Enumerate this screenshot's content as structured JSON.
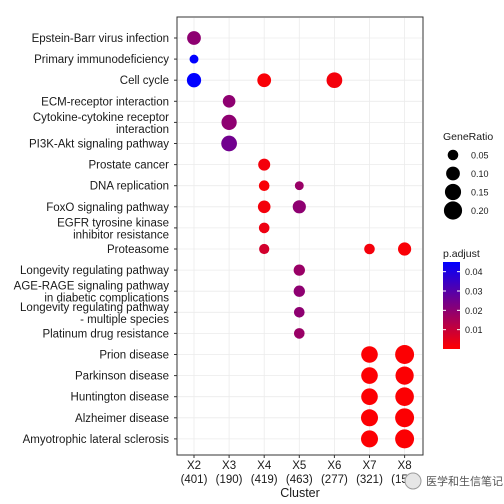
{
  "chart_data": {
    "type": "scatter",
    "xlabel": "Cluster",
    "clusters": [
      {
        "id": "X2",
        "count": "(401)"
      },
      {
        "id": "X3",
        "count": "(190)"
      },
      {
        "id": "X4",
        "count": "(419)"
      },
      {
        "id": "X5",
        "count": "(463)"
      },
      {
        "id": "X6",
        "count": "(277)"
      },
      {
        "id": "X7",
        "count": "(321)"
      },
      {
        "id": "X8",
        "count": "(158)"
      }
    ],
    "terms": [
      [
        "Epstein-Barr virus infection"
      ],
      [
        "Primary immunodeficiency"
      ],
      [
        "Cell cycle"
      ],
      [
        "ECM-receptor interaction"
      ],
      [
        "Cytokine-cytokine receptor",
        "interaction"
      ],
      [
        "PI3K-Akt signaling pathway"
      ],
      [
        "Prostate cancer"
      ],
      [
        "DNA replication"
      ],
      [
        "FoxO signaling pathway"
      ],
      [
        "EGFR tyrosine kinase",
        "inhibitor resistance"
      ],
      [
        "Proteasome"
      ],
      [
        "Longevity regulating pathway"
      ],
      [
        "AGE-RAGE signaling pathway",
        "in diabetic complications"
      ],
      [
        "Longevity regulating pathway",
        "- multiple species"
      ],
      [
        "Platinum drug resistance"
      ],
      [
        "Prion disease"
      ],
      [
        "Parkinson disease"
      ],
      [
        "Huntington disease"
      ],
      [
        "Alzheimer disease"
      ],
      [
        "Amyotrophic lateral sclerosis"
      ]
    ],
    "points": [
      {
        "cluster": "X2",
        "term": 0,
        "gene_ratio": 0.1,
        "p_adjust": 0.02
      },
      {
        "cluster": "X2",
        "term": 1,
        "gene_ratio": 0.03,
        "p_adjust": 0.045
      },
      {
        "cluster": "X2",
        "term": 2,
        "gene_ratio": 0.11,
        "p_adjust": 0.045
      },
      {
        "cluster": "X3",
        "term": 3,
        "gene_ratio": 0.08,
        "p_adjust": 0.02
      },
      {
        "cluster": "X3",
        "term": 4,
        "gene_ratio": 0.13,
        "p_adjust": 0.02
      },
      {
        "cluster": "X3",
        "term": 5,
        "gene_ratio": 0.14,
        "p_adjust": 0.025
      },
      {
        "cluster": "X4",
        "term": 2,
        "gene_ratio": 0.1,
        "p_adjust": 0.001
      },
      {
        "cluster": "X4",
        "term": 6,
        "gene_ratio": 0.07,
        "p_adjust": 0.002
      },
      {
        "cluster": "X4",
        "term": 7,
        "gene_ratio": 0.05,
        "p_adjust": 0.001
      },
      {
        "cluster": "X4",
        "term": 8,
        "gene_ratio": 0.08,
        "p_adjust": 0.002
      },
      {
        "cluster": "X4",
        "term": 9,
        "gene_ratio": 0.05,
        "p_adjust": 0.003
      },
      {
        "cluster": "X4",
        "term": 10,
        "gene_ratio": 0.045,
        "p_adjust": 0.008
      },
      {
        "cluster": "X5",
        "term": 7,
        "gene_ratio": 0.03,
        "p_adjust": 0.018
      },
      {
        "cluster": "X5",
        "term": 8,
        "gene_ratio": 0.09,
        "p_adjust": 0.02
      },
      {
        "cluster": "X5",
        "term": 11,
        "gene_ratio": 0.06,
        "p_adjust": 0.018
      },
      {
        "cluster": "X5",
        "term": 12,
        "gene_ratio": 0.06,
        "p_adjust": 0.02
      },
      {
        "cluster": "X5",
        "term": 13,
        "gene_ratio": 0.05,
        "p_adjust": 0.02
      },
      {
        "cluster": "X5",
        "term": 14,
        "gene_ratio": 0.05,
        "p_adjust": 0.018
      },
      {
        "cluster": "X6",
        "term": 2,
        "gene_ratio": 0.14,
        "p_adjust": 0.002
      },
      {
        "cluster": "X7",
        "term": 10,
        "gene_ratio": 0.05,
        "p_adjust": 0.002
      },
      {
        "cluster": "X7",
        "term": 15,
        "gene_ratio": 0.16,
        "p_adjust": 0.0005
      },
      {
        "cluster": "X7",
        "term": 16,
        "gene_ratio": 0.16,
        "p_adjust": 0.0005
      },
      {
        "cluster": "X7",
        "term": 17,
        "gene_ratio": 0.16,
        "p_adjust": 0.0005
      },
      {
        "cluster": "X7",
        "term": 18,
        "gene_ratio": 0.17,
        "p_adjust": 0.0005
      },
      {
        "cluster": "X7",
        "term": 19,
        "gene_ratio": 0.17,
        "p_adjust": 0.0005
      },
      {
        "cluster": "X8",
        "term": 10,
        "gene_ratio": 0.09,
        "p_adjust": 0.001
      },
      {
        "cluster": "X8",
        "term": 15,
        "gene_ratio": 0.22,
        "p_adjust": 0.0005
      },
      {
        "cluster": "X8",
        "term": 16,
        "gene_ratio": 0.2,
        "p_adjust": 0.0005
      },
      {
        "cluster": "X8",
        "term": 17,
        "gene_ratio": 0.21,
        "p_adjust": 0.0005
      },
      {
        "cluster": "X8",
        "term": 18,
        "gene_ratio": 0.22,
        "p_adjust": 0.0005
      },
      {
        "cluster": "X8",
        "term": 19,
        "gene_ratio": 0.22,
        "p_adjust": 0.0005
      }
    ],
    "size_legend": {
      "title": "GeneRatio",
      "breaks": [
        0.05,
        0.1,
        0.15,
        0.2
      ],
      "labels": [
        "0.05",
        "0.10",
        "0.15",
        "0.20"
      ]
    },
    "color_legend": {
      "title": "p.adjust",
      "breaks": [
        0.01,
        0.02,
        0.03,
        0.04
      ],
      "labels": [
        "0.01",
        "0.02",
        "0.03",
        "0.04"
      ],
      "range": [
        0.0,
        0.045
      ],
      "low_color": "#ff0000",
      "high_color": "#0000ff"
    },
    "grid": true,
    "legend_position": "right"
  },
  "watermark": "医学和生信笔记"
}
